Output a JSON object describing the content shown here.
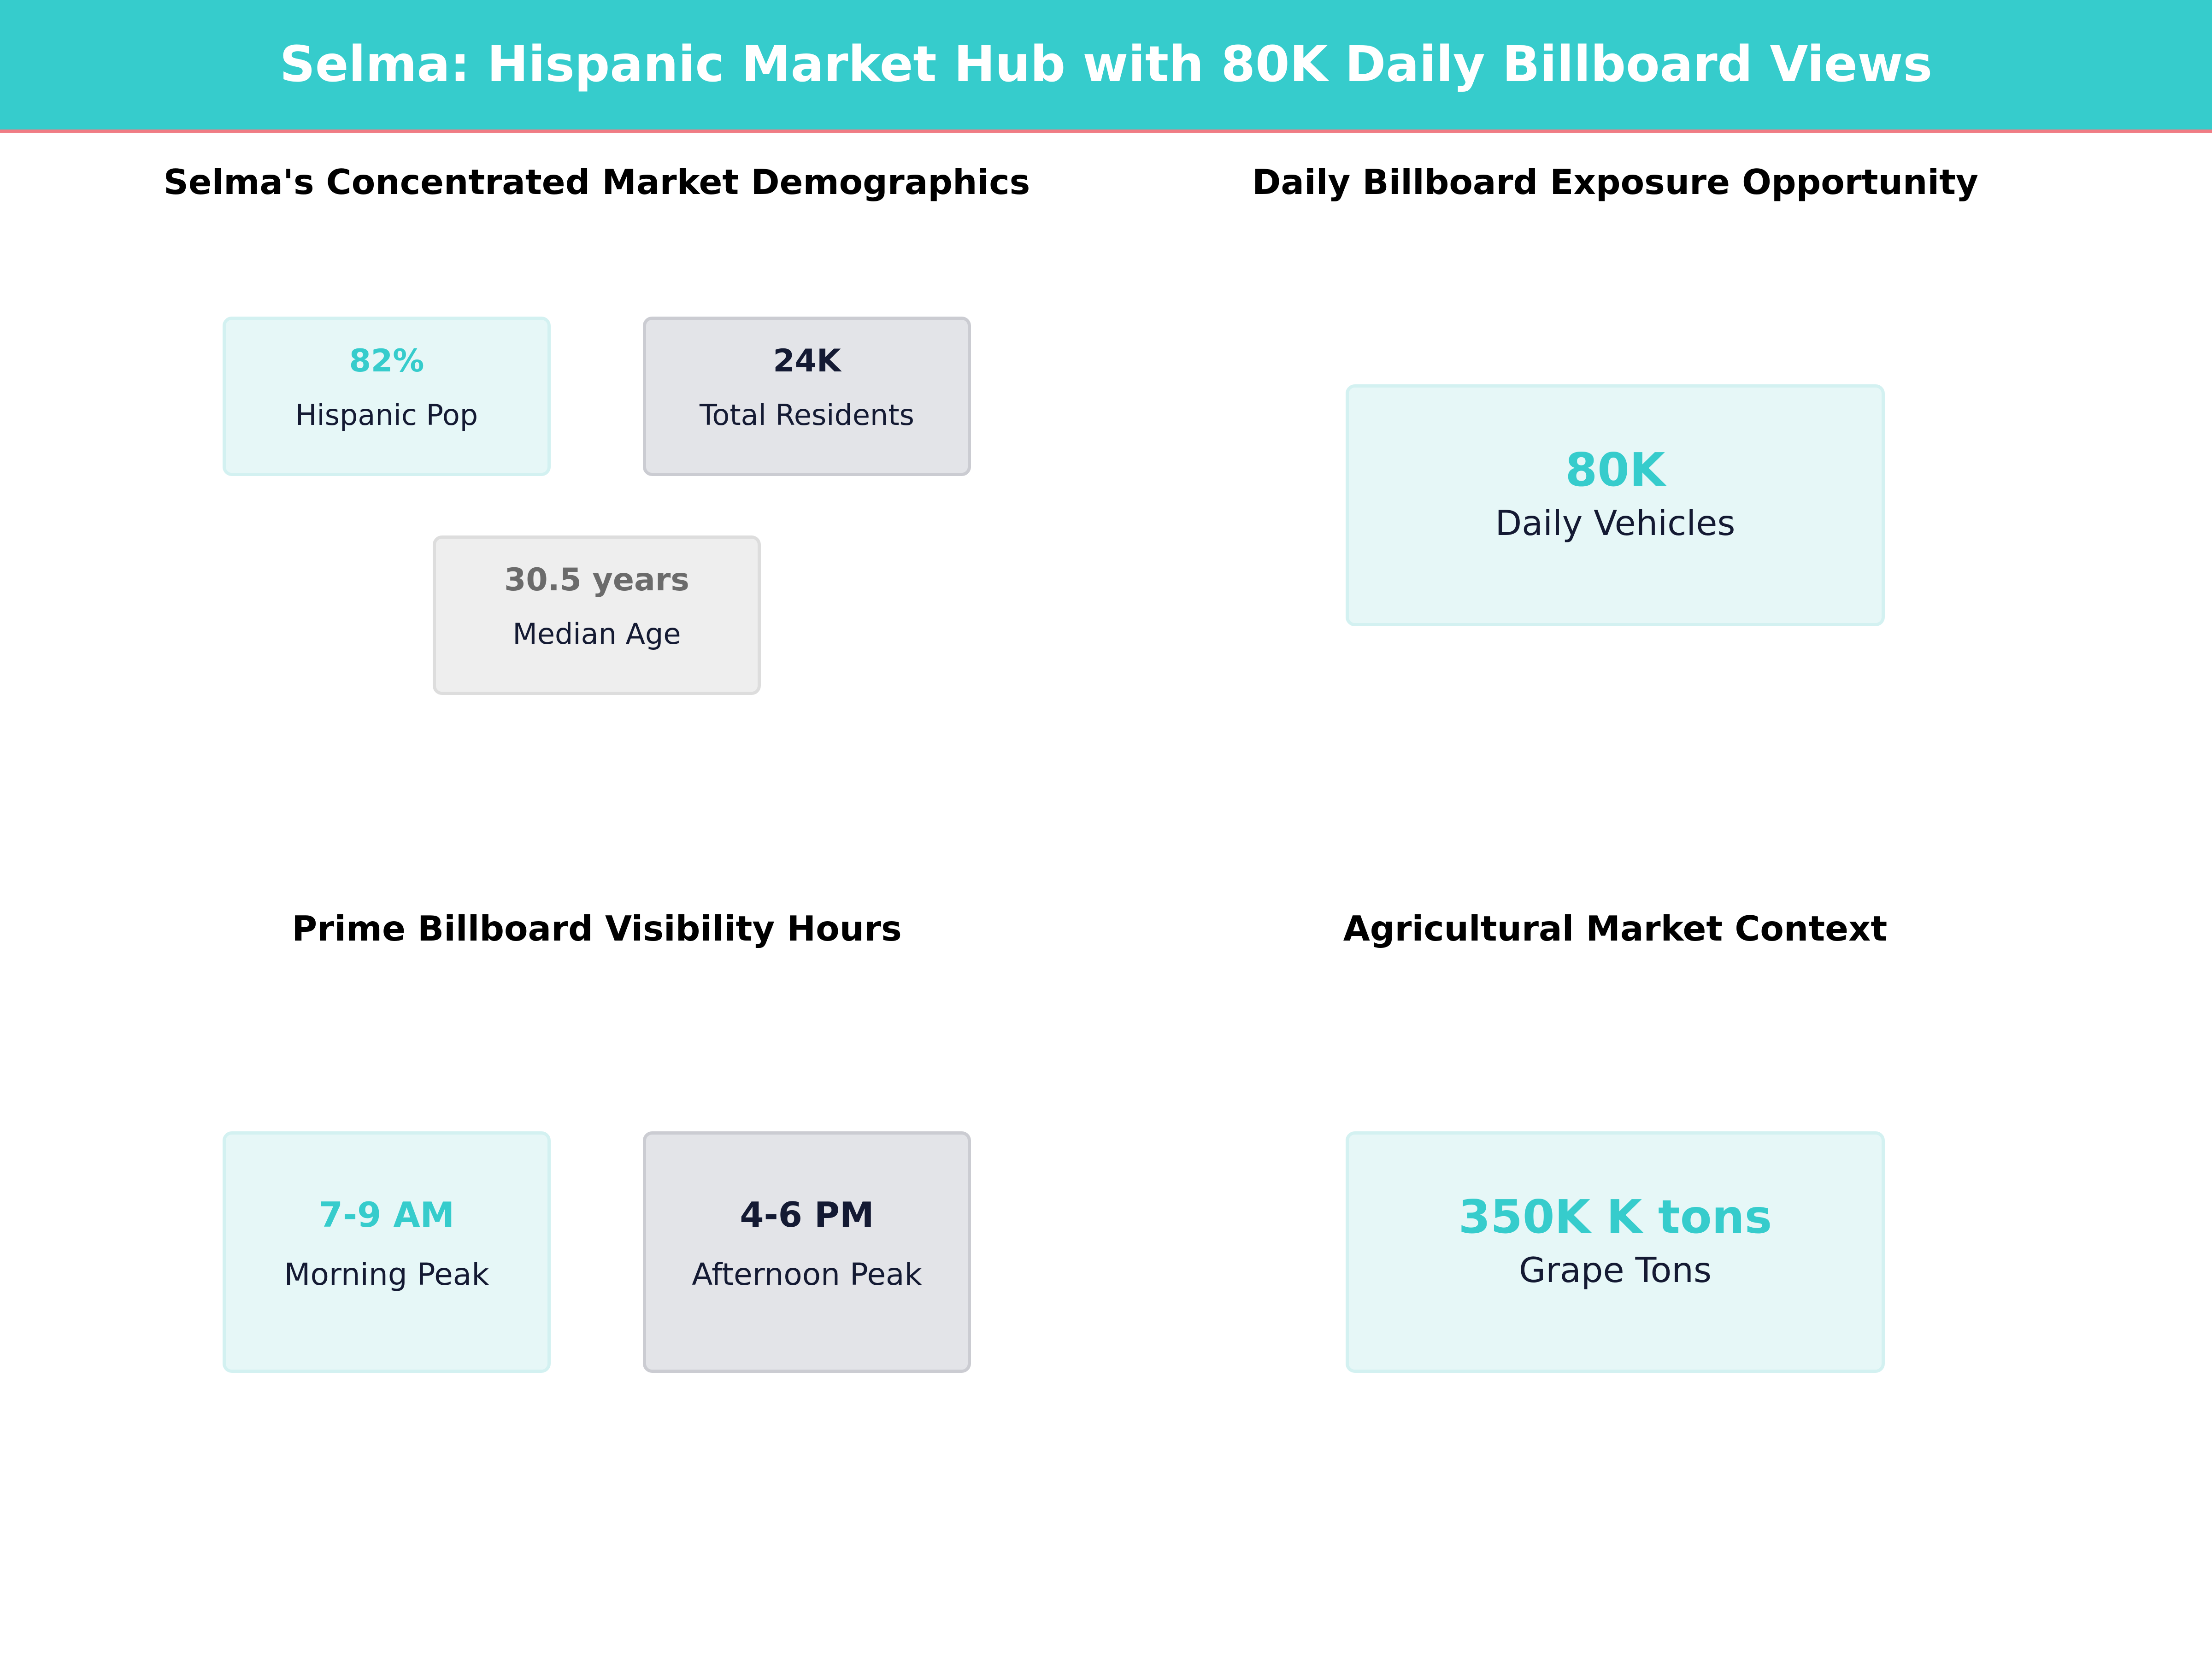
{
  "header": {
    "title": "Selma: Hispanic Market Hub with 80K Daily Billboard Views"
  },
  "colors": {
    "accent": "#36cccc",
    "accent_border": "#f07c84",
    "navy": "#141a33",
    "gray": "#6b6b6b",
    "teal_card_bg": "#e6f7f7",
    "teal_card_border": "#d3f1f1",
    "navy_card_bg": "#e3e4e8",
    "navy_card_border": "#cbccd2",
    "gray_card_bg": "#eeeeee",
    "gray_card_border": "#dddddd"
  },
  "chart_data": [
    {
      "type": "table",
      "title": "Selma's Concentrated Market Demographics",
      "metrics": [
        {
          "value": "82%",
          "label": "Hispanic Pop",
          "style": "teal"
        },
        {
          "value": "24K",
          "label": "Total Residents",
          "style": "navy"
        },
        {
          "value": "30.5 years",
          "label": "Median Age",
          "style": "gray"
        }
      ]
    },
    {
      "type": "table",
      "title": "Daily Billboard Exposure Opportunity",
      "metrics": [
        {
          "value": "80K",
          "label": "Daily Vehicles",
          "style": "teal"
        }
      ]
    },
    {
      "type": "table",
      "title": "Prime Billboard Visibility Hours",
      "metrics": [
        {
          "value": "7-9 AM",
          "label": "Morning Peak",
          "style": "teal"
        },
        {
          "value": "4-6 PM",
          "label": "Afternoon Peak",
          "style": "navy"
        }
      ]
    },
    {
      "type": "table",
      "title": "Agricultural Market Context",
      "metrics": [
        {
          "value": "350K K tons",
          "label": "Grape Tons",
          "style": "teal"
        }
      ]
    }
  ]
}
